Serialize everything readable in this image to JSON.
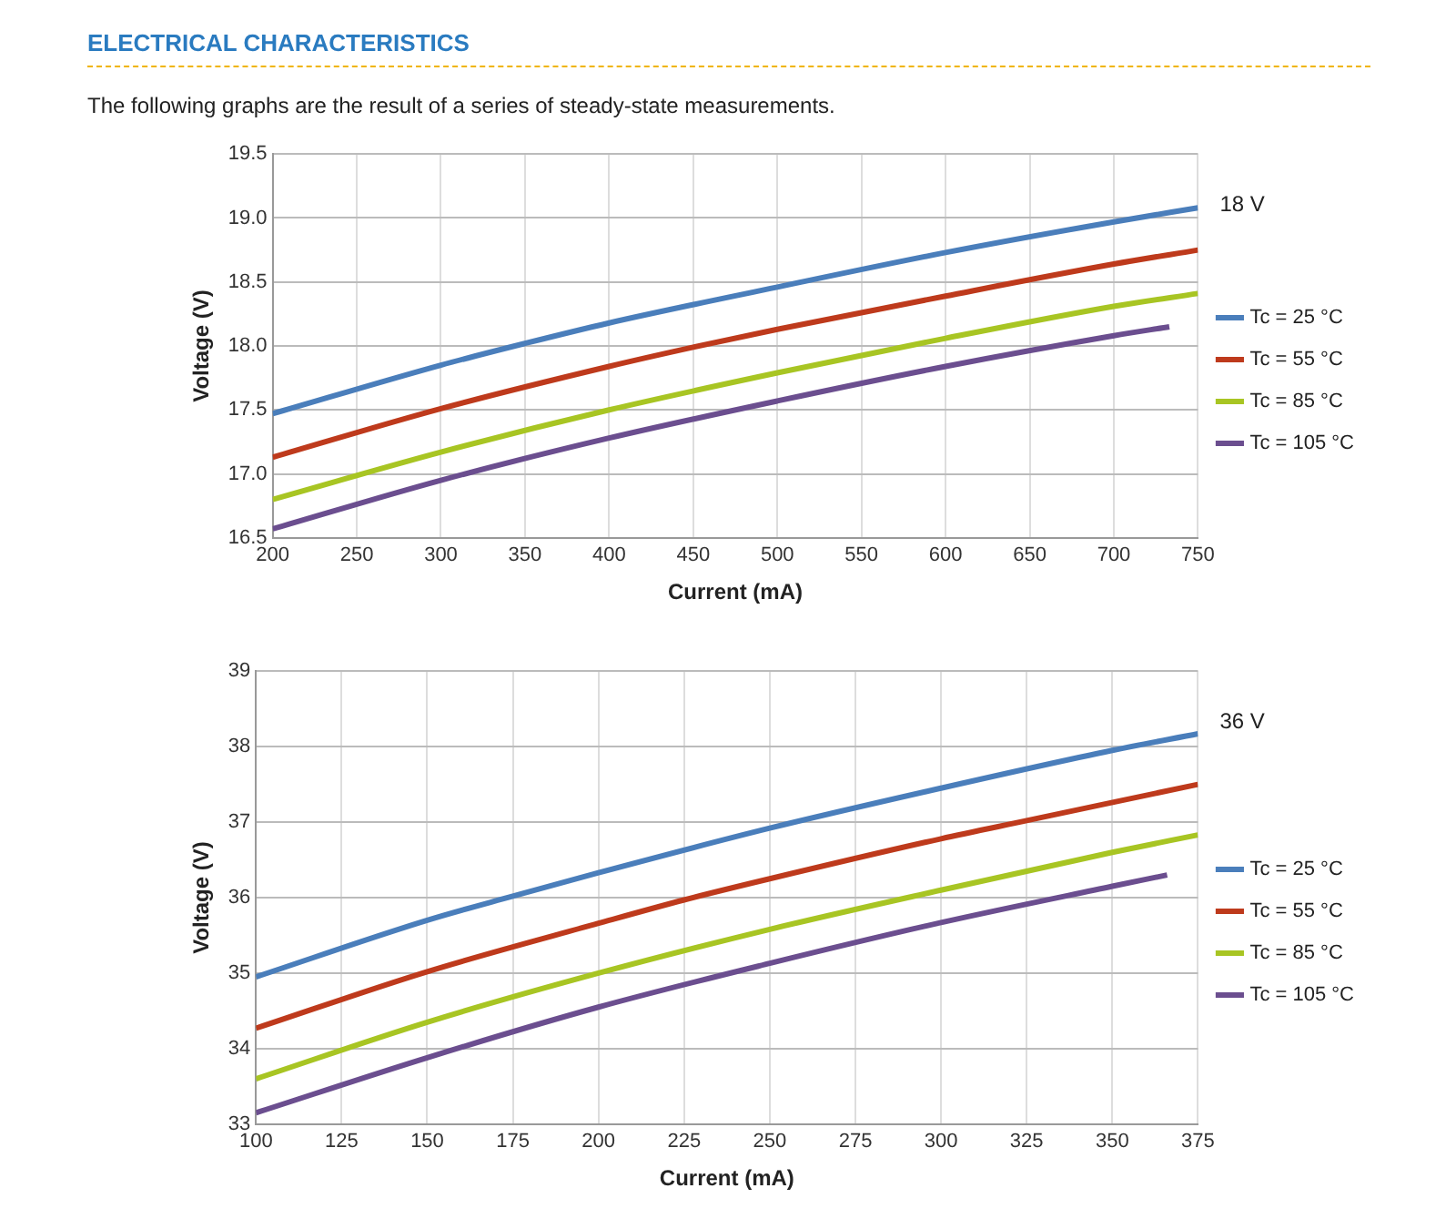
{
  "chart_data": [
    {
      "type": "line",
      "title": "ELECTRICAL CHARACTERISTICS",
      "subtitle": "The following graphs are the result of a series of steady-state measurements.",
      "xlabel": "Current (mA)",
      "ylabel": "Voltage (V)",
      "annotations": [
        "18 V"
      ],
      "xlim": [
        200,
        750
      ],
      "xticks": [
        200,
        250,
        300,
        350,
        400,
        450,
        500,
        550,
        600,
        650,
        700,
        750
      ],
      "ylim": [
        16.5,
        19.5
      ],
      "yticks": [
        16.5,
        {
          "value": 17,
          "label": "17.0"
        },
        17.5,
        {
          "value": 18,
          "label": "18.0"
        },
        18.5,
        {
          "value": 19,
          "label": "19.0"
        },
        19.5
      ],
      "grid": true,
      "legend": "right",
      "marker": "none",
      "series": [
        {
          "name": "Tc = 25 °C",
          "color": "#4a7ebb",
          "x": [
            200,
            300,
            350,
            400,
            500,
            600,
            700,
            750
          ],
          "values": [
            17.47,
            17.85,
            18.02,
            18.18,
            18.46,
            18.73,
            18.97,
            19.08
          ]
        },
        {
          "name": "Tc = 55 °C",
          "color": "#be3a1c",
          "x": [
            200,
            300,
            400,
            450,
            500,
            600,
            700,
            750
          ],
          "values": [
            17.13,
            17.51,
            17.84,
            17.99,
            18.13,
            18.39,
            18.64,
            18.75
          ]
        },
        {
          "name": "Tc = 85 °C",
          "color": "#a8c523",
          "x": [
            200,
            300,
            400,
            500,
            600,
            700,
            750
          ],
          "values": [
            16.8,
            17.17,
            17.5,
            17.79,
            18.06,
            18.31,
            18.41
          ]
        },
        {
          "name": "Tc = 105 °C",
          "color": "#6b4e8f",
          "x": [
            200,
            300,
            400,
            500,
            600,
            700,
            733
          ],
          "values": [
            16.57,
            16.95,
            17.28,
            17.57,
            17.84,
            18.08,
            18.15
          ]
        }
      ]
    },
    {
      "type": "line",
      "xlabel": "Current (mA)",
      "ylabel": "Voltage (V)",
      "annotations": [
        "36 V"
      ],
      "xlim": [
        100,
        375
      ],
      "xticks": [
        100,
        125,
        150,
        175,
        200,
        225,
        250,
        275,
        300,
        325,
        350,
        375
      ],
      "ylim": [
        33,
        39
      ],
      "yticks": [
        33,
        34,
        35,
        36,
        37,
        38,
        39
      ],
      "grid": true,
      "legend": "right",
      "marker": "none",
      "series": [
        {
          "name": "Tc = 25 °C",
          "color": "#4a7ebb",
          "x": [
            100,
            150,
            175,
            200,
            250,
            300,
            350,
            375
          ],
          "values": [
            34.95,
            35.7,
            36.02,
            36.33,
            36.92,
            37.45,
            37.95,
            38.17
          ]
        },
        {
          "name": "Tc = 55 °C",
          "color": "#be3a1c",
          "x": [
            100,
            150,
            200,
            225,
            250,
            300,
            325,
            375
          ],
          "values": [
            34.27,
            35.02,
            35.66,
            35.97,
            36.25,
            36.78,
            37.02,
            37.5
          ]
        },
        {
          "name": "Tc = 85 °C",
          "color": "#a8c523",
          "x": [
            100,
            150,
            200,
            250,
            300,
            350,
            375
          ],
          "values": [
            33.6,
            34.35,
            35.0,
            35.58,
            36.1,
            36.6,
            36.83
          ]
        },
        {
          "name": "Tc = 105 °C",
          "color": "#6b4e8f",
          "x": [
            100,
            150,
            200,
            250,
            300,
            350,
            366
          ],
          "values": [
            33.15,
            33.88,
            34.55,
            35.13,
            35.67,
            36.15,
            36.3
          ]
        }
      ]
    }
  ]
}
